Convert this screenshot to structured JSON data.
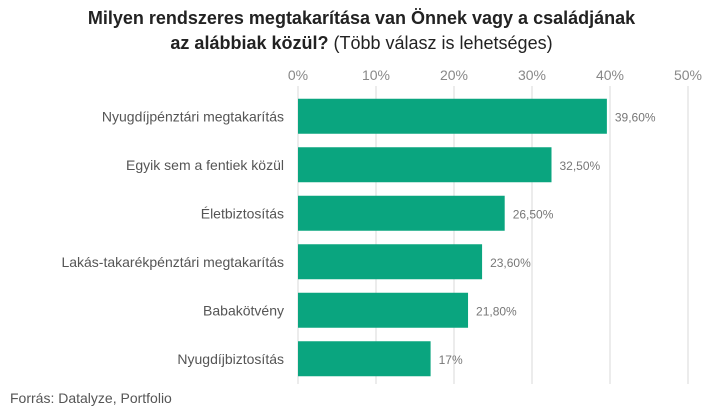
{
  "title": {
    "line1_bold": "Milyen rendszeres megtakarítása van Önnek vagy a családjának",
    "line2_bold": "az alábbiak közül?",
    "line2_normal": " (Több válasz is lehetséges)"
  },
  "source": "Forrás: Datalyze, Portfolio",
  "colors": {
    "bar": "#0aa57f",
    "grid": "#d9d9d9",
    "tick_text": "#888888",
    "category_text": "#555555",
    "value_text": "#777777"
  },
  "chart_data": {
    "type": "bar",
    "orientation": "horizontal",
    "categories": [
      "Nyugdíjpénztári megtakarítás",
      "Egyik sem a fentiek közül",
      "Életbiztosítás",
      "Lakás-takarékpénztári megtakarítás",
      "Babakötvény",
      "Nyugdíjbiztosítás"
    ],
    "values": [
      39.6,
      32.5,
      26.5,
      23.6,
      21.8,
      17
    ],
    "value_labels": [
      "39,60%",
      "32,50%",
      "26,50%",
      "23,60%",
      "21,80%",
      "17%"
    ],
    "xaxis": {
      "position": "top",
      "range": [
        0,
        50
      ],
      "ticks": [
        0,
        10,
        20,
        30,
        40,
        50
      ],
      "tick_labels": [
        "0%",
        "10%",
        "20%",
        "30%",
        "40%",
        "50%"
      ]
    },
    "grid": true,
    "legend": "none"
  }
}
